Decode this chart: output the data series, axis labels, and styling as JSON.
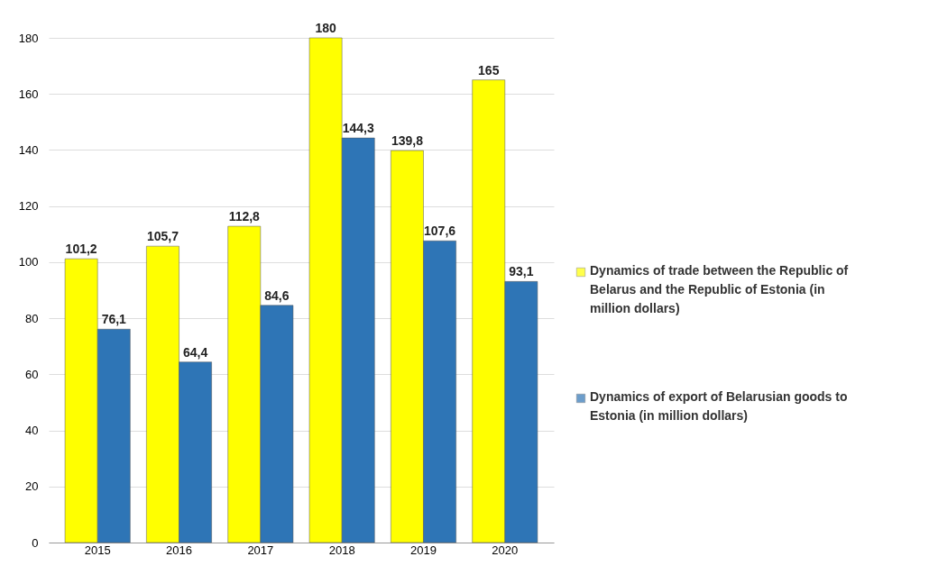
{
  "chart_data": {
    "type": "bar",
    "categories": [
      "2015",
      "2016",
      "2017",
      "2018",
      "2019",
      "2020"
    ],
    "series": [
      {
        "name": "Dynamics of trade between the Republic of Belarus and the Republic of Estonia (in million dollars)",
        "color": "#ffff00",
        "values": [
          101.2,
          105.7,
          112.8,
          180,
          139.8,
          165
        ],
        "value_labels": [
          "101,2",
          "105,7",
          "112,8",
          "180",
          "139,8",
          "165"
        ]
      },
      {
        "name": "Dynamics of export of Belarusian goods to Estonia (in million dollars)",
        "color": "#2e75b6",
        "values": [
          76.1,
          64.4,
          84.6,
          144.3,
          107.6,
          93.1
        ],
        "value_labels": [
          "76,1",
          "64,4",
          "84,6",
          "144,3",
          "107,6",
          "93,1"
        ]
      }
    ],
    "ylim": [
      0,
      180
    ],
    "yticks": [
      0,
      20,
      40,
      60,
      80,
      100,
      120,
      140,
      160,
      180
    ],
    "grid": "y",
    "legend": "right"
  }
}
